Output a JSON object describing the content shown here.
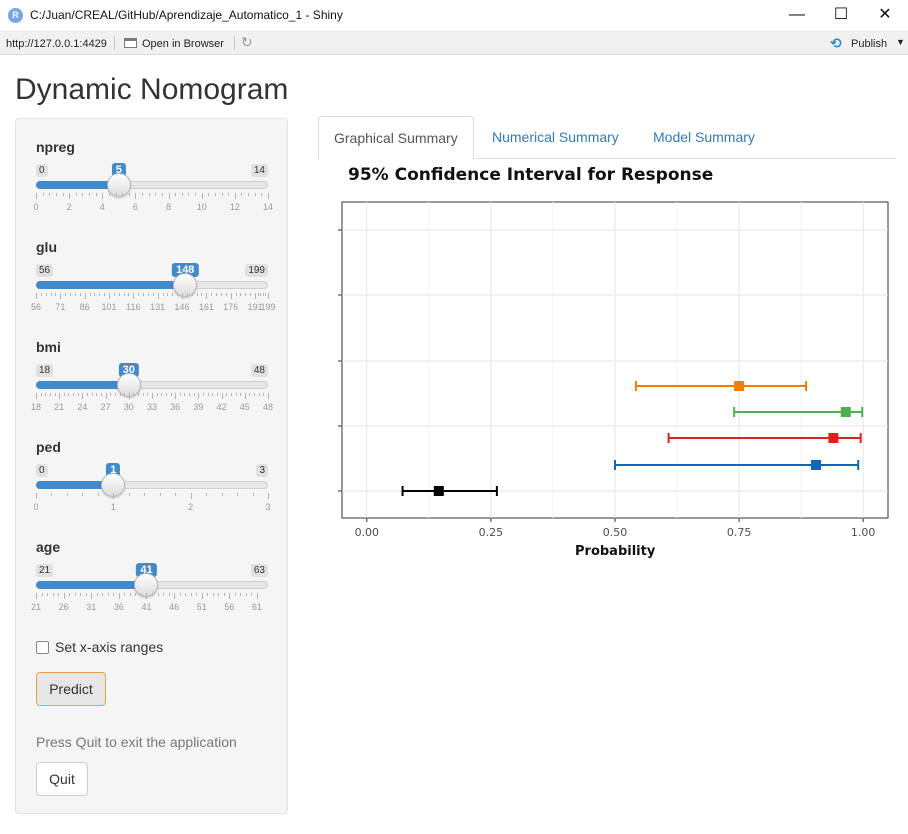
{
  "window": {
    "title": "C:/Juan/CREAL/GitHub/Aprendizaje_Automatico_1 - Shiny",
    "minimize": "—",
    "maximize": "☐",
    "close": "✕"
  },
  "addressbar": {
    "url": "http://127.0.0.1:4429",
    "open_in_browser": "Open in Browser",
    "publish": "Publish"
  },
  "app": {
    "title": "Dynamic Nomogram"
  },
  "sliders": [
    {
      "name": "npreg",
      "label": "npreg",
      "min": 0,
      "max": 14,
      "value": 5,
      "min_label": "0",
      "max_label": "14",
      "value_label": "5",
      "ticks": [
        "0",
        "2",
        "4",
        "6",
        "8",
        "10",
        "12",
        "14"
      ]
    },
    {
      "name": "glu",
      "label": "glu",
      "min": 56,
      "max": 199,
      "value": 148,
      "min_label": "56",
      "max_label": "199",
      "value_label": "148",
      "ticks": [
        "56",
        "71",
        "86",
        "101",
        "116",
        "131",
        "146",
        "161",
        "176",
        "191",
        "199"
      ]
    },
    {
      "name": "bmi",
      "label": "bmi",
      "min": 18,
      "max": 48,
      "value": 30,
      "min_label": "18",
      "max_label": "48",
      "value_label": "30",
      "ticks": [
        "18",
        "21",
        "24",
        "27",
        "30",
        "33",
        "36",
        "39",
        "42",
        "45",
        "48"
      ]
    },
    {
      "name": "ped",
      "label": "ped",
      "min": 0,
      "max": 3,
      "value": 1,
      "min_label": "0",
      "max_label": "3",
      "value_label": "1",
      "ticks": [
        "0",
        "1",
        "2",
        "3"
      ]
    },
    {
      "name": "age",
      "label": "age",
      "min": 21,
      "max": 63,
      "value": 41,
      "min_label": "21",
      "max_label": "63",
      "value_label": "41",
      "ticks": [
        "21",
        "26",
        "31",
        "36",
        "41",
        "46",
        "51",
        "56",
        "61"
      ]
    }
  ],
  "controls": {
    "set_x_axis_ranges": "Set x-axis ranges",
    "predict": "Predict",
    "quit_note": "Press Quit to exit the application",
    "quit": "Quit"
  },
  "tabs": [
    {
      "label": "Graphical Summary",
      "active": true
    },
    {
      "label": "Numerical Summary",
      "active": false
    },
    {
      "label": "Model Summary",
      "active": false
    }
  ],
  "chart_data": {
    "type": "scatter",
    "title": "95% Confidence Interval for Response",
    "xlabel": "Probability",
    "ylabel": "",
    "xlim": [
      -0.05,
      1.05
    ],
    "xticks": [
      0.0,
      0.25,
      0.5,
      0.75,
      1.0
    ],
    "xtick_labels": [
      "0.00",
      "0.25",
      "0.50",
      "0.75",
      "1.00"
    ],
    "grid": true,
    "legend": "none",
    "intervals": [
      {
        "color": "#000000",
        "estimate": 0.145,
        "lower": 0.072,
        "upper": 0.262
      },
      {
        "color": "#1565c0",
        "estimate": 0.905,
        "lower": 0.5,
        "upper": 0.99
      },
      {
        "color": "#e02020",
        "estimate": 0.94,
        "lower": 0.608,
        "upper": 0.995
      },
      {
        "color": "#4caf50",
        "estimate": 0.965,
        "lower": 0.74,
        "upper": 0.998
      },
      {
        "color": "#f57c00",
        "estimate": 0.75,
        "lower": 0.542,
        "upper": 0.885
      }
    ]
  }
}
